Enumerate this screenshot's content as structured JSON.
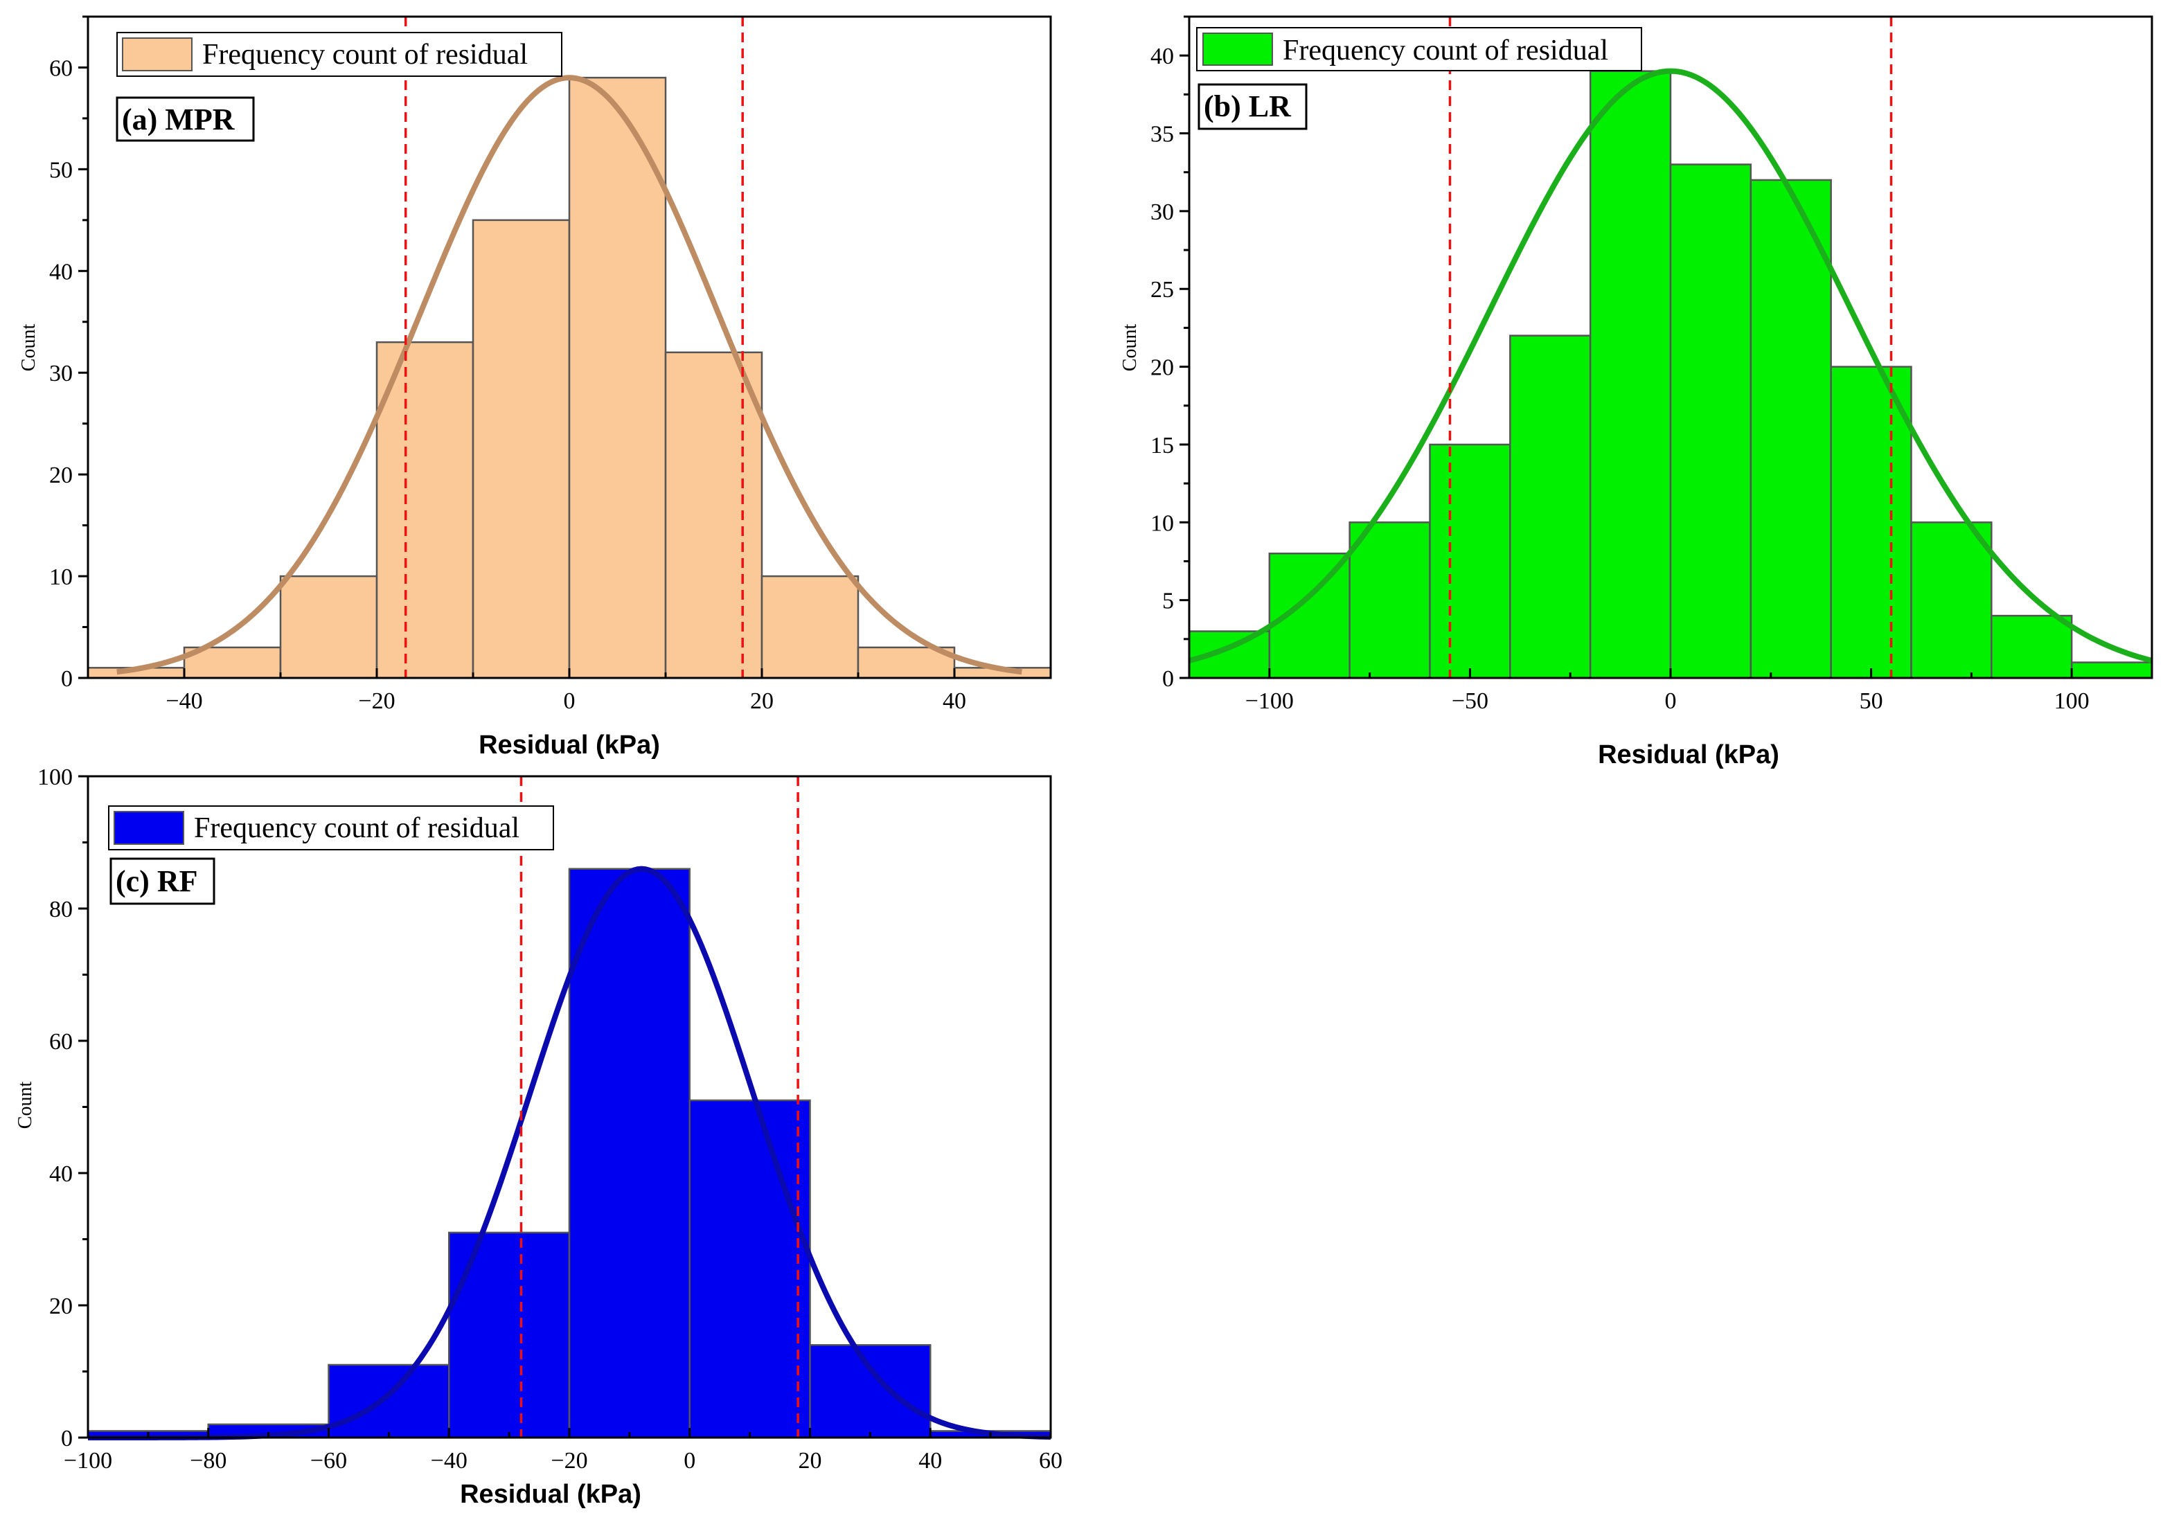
{
  "chart_data": [
    {
      "id": "a",
      "type": "bar",
      "panel_label": "(a) MPR",
      "legend": "Frequency count of residual",
      "xlabel": "Residual (kPa)",
      "ylabel": "Count",
      "xlim": [
        -50,
        50
      ],
      "ylim": [
        0,
        65
      ],
      "xticks": [
        -40,
        -20,
        0,
        20,
        40
      ],
      "yticks": [
        0,
        10,
        20,
        30,
        40,
        50,
        60
      ],
      "bar_color": "#FBC897",
      "curve_color": "#BE8C63",
      "bin_edges": [
        -50,
        -40,
        -30,
        -20,
        -10,
        0,
        10,
        20,
        30,
        40,
        50
      ],
      "values": [
        1,
        3,
        10,
        33,
        45,
        59,
        32,
        10,
        3,
        1
      ],
      "ref_lines": [
        -17,
        18
      ],
      "fit": {
        "mean": 0,
        "sd": 15.5,
        "peak": 59,
        "range": [
          -47,
          47
        ]
      }
    },
    {
      "id": "b",
      "type": "bar",
      "panel_label": "(b) LR",
      "legend": "Frequency count of residual",
      "xlabel": "Residual (kPa)",
      "ylabel": "Count",
      "xlim": [
        -120,
        120
      ],
      "ylim": [
        0,
        42.5
      ],
      "xticks": [
        -100,
        -50,
        0,
        50,
        100
      ],
      "yticks": [
        0,
        5,
        10,
        15,
        20,
        25,
        30,
        35,
        40
      ],
      "bar_color": "#00F000",
      "curve_color": "#1CAF1C",
      "bin_edges": [
        -120,
        -100,
        -80,
        -60,
        -40,
        -20,
        0,
        20,
        40,
        60,
        80,
        100,
        120
      ],
      "values": [
        3,
        8,
        10,
        15,
        22,
        39,
        33,
        32,
        20,
        10,
        4,
        1
      ],
      "ref_lines": [
        -55,
        55
      ],
      "fit": {
        "mean": 0,
        "sd": 45,
        "peak": 39,
        "range": [
          -120,
          120
        ]
      }
    },
    {
      "id": "c",
      "type": "bar",
      "panel_label": "(c) RF",
      "legend": "Frequency count of residual",
      "xlabel": "Residual (kPa)",
      "ylabel": "Count",
      "xlim": [
        -100,
        60
      ],
      "ylim": [
        0,
        100
      ],
      "xticks": [
        -100,
        -80,
        -60,
        -40,
        -20,
        0,
        20,
        40,
        60
      ],
      "yticks": [
        0,
        20,
        40,
        60,
        80,
        100
      ],
      "bar_color": "#0000F0",
      "curve_color": "#0A0AAF",
      "bin_edges": [
        -100,
        -80,
        -60,
        -40,
        -20,
        0,
        20,
        40,
        60
      ],
      "values": [
        1,
        2,
        11,
        31,
        86,
        51,
        14,
        1
      ],
      "ref_lines": [
        -28,
        18
      ],
      "fit": {
        "mean": -8,
        "sd": 18.5,
        "peak": 86,
        "range": [
          -100,
          60
        ]
      }
    }
  ]
}
